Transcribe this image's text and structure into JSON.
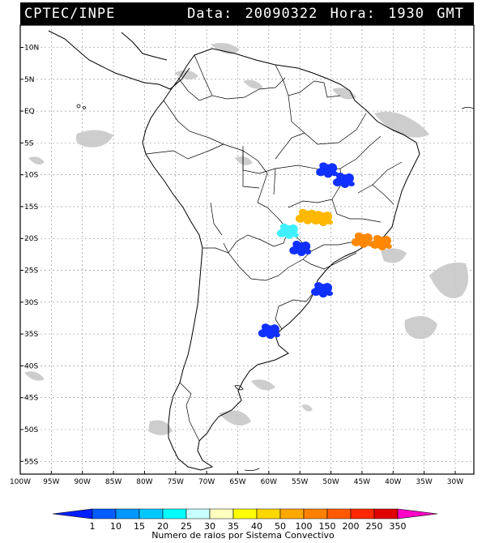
{
  "header": {
    "source": "CPTEC/INPE",
    "date_label": "Data:",
    "date": "20090322",
    "time_label": "Hora:",
    "time": "1930",
    "tz": "GMT"
  },
  "lat_labels": [
    "10N",
    "5N",
    "EQ",
    "5S",
    "10S",
    "15S",
    "20S",
    "25S",
    "30S",
    "35S",
    "40S",
    "45S",
    "50S",
    "55S"
  ],
  "lon_labels": [
    "100W",
    "95W",
    "90W",
    "85W",
    "80W",
    "75W",
    "70W",
    "65W",
    "60W",
    "55W",
    "50W",
    "45W",
    "40W",
    "35W",
    "30W"
  ],
  "colorbar": {
    "ticks": [
      "1",
      "10",
      "15",
      "20",
      "25",
      "30",
      "35",
      "40",
      "50",
      "100",
      "150",
      "200",
      "250",
      "350"
    ],
    "colors": [
      "#0020ff",
      "#005cff",
      "#0096ff",
      "#00c8ff",
      "#00ffff",
      "#c8ffff",
      "#ffffc0",
      "#ffff00",
      "#ffd700",
      "#ffa800",
      "#ff8000",
      "#ff5a00",
      "#ff2800",
      "#e00000",
      "#ff00c8"
    ],
    "label": "Numero de raios por Sistema Convectivo"
  },
  "systems": [
    {
      "color": "#1030ff",
      "lon": -50.7,
      "lat": -9.2
    },
    {
      "color": "#1030ff",
      "lon": -48.0,
      "lat": -10.8
    },
    {
      "color": "#ffb800",
      "lon": -54.0,
      "lat": -16.5
    },
    {
      "color": "#ffb800",
      "lon": -51.5,
      "lat": -16.8
    },
    {
      "color": "#ff8800",
      "lon": -45.0,
      "lat": -20.2
    },
    {
      "color": "#ff8800",
      "lon": -42.0,
      "lat": -20.6
    },
    {
      "color": "#40f0ff",
      "lon": -57.0,
      "lat": -18.8
    },
    {
      "color": "#1030ff",
      "lon": -55.0,
      "lat": -21.5
    },
    {
      "color": "#1030ff",
      "lon": -60.0,
      "lat": -34.5
    },
    {
      "color": "#1030ff",
      "lon": -51.5,
      "lat": -28.0
    }
  ]
}
